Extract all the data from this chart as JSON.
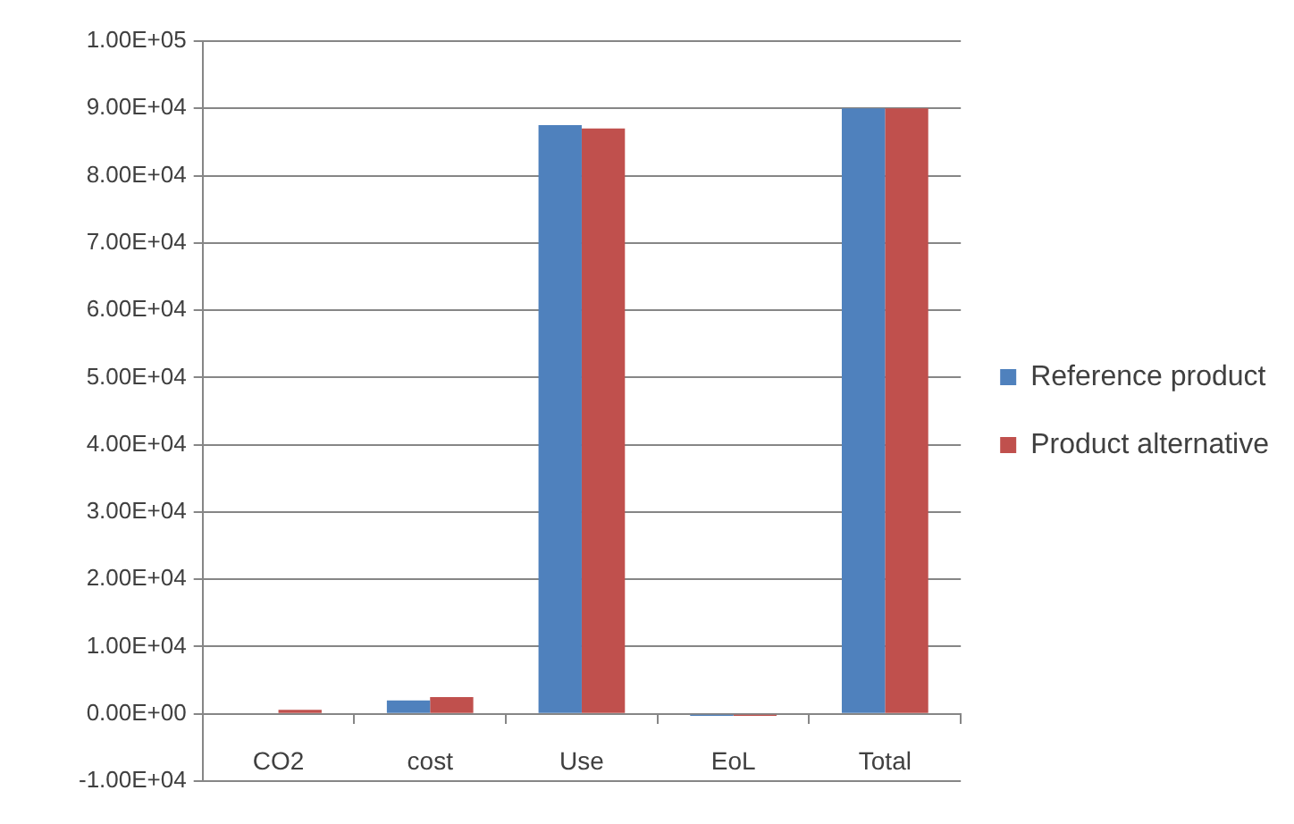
{
  "chart_data": {
    "type": "bar",
    "categories": [
      "CO2",
      "cost",
      "Use",
      "EoL",
      "Total"
    ],
    "series": [
      {
        "name": "Reference product",
        "color": "#4f81bd",
        "values": [
          0,
          2000,
          87500,
          -300,
          90000
        ]
      },
      {
        "name": "Product alternative",
        "color": "#c0504d",
        "values": [
          600,
          2500,
          87000,
          -300,
          90000
        ]
      }
    ],
    "ylim": [
      -10000,
      100000
    ],
    "yticks": [
      {
        "value": -10000,
        "label": "-1.00E+04"
      },
      {
        "value": 0,
        "label": "0.00E+00"
      },
      {
        "value": 10000,
        "label": "1.00E+04"
      },
      {
        "value": 20000,
        "label": "2.00E+04"
      },
      {
        "value": 30000,
        "label": "3.00E+04"
      },
      {
        "value": 40000,
        "label": "4.00E+04"
      },
      {
        "value": 50000,
        "label": "5.00E+04"
      },
      {
        "value": 60000,
        "label": "6.00E+04"
      },
      {
        "value": 70000,
        "label": "7.00E+04"
      },
      {
        "value": 80000,
        "label": "8.00E+04"
      },
      {
        "value": 90000,
        "label": "9.00E+04"
      },
      {
        "value": 100000,
        "label": "1.00E+05"
      }
    ],
    "grid": "y",
    "legend": "right"
  }
}
